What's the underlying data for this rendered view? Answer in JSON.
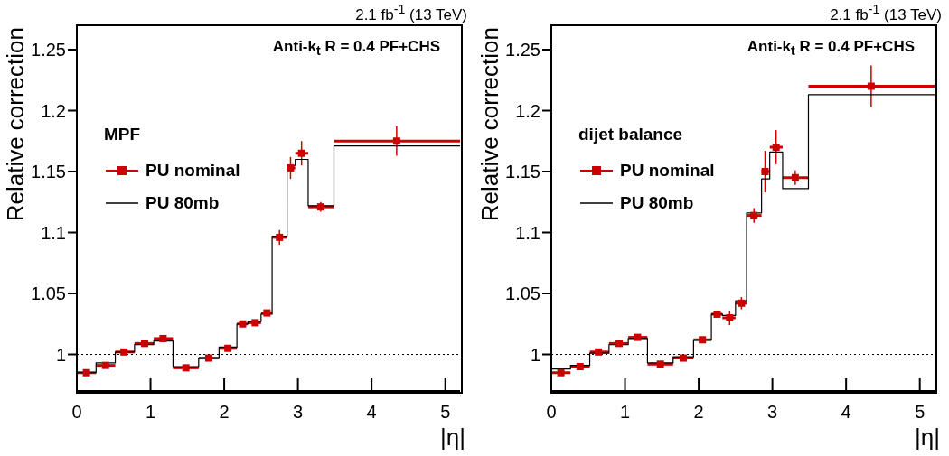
{
  "chart_data": [
    {
      "type": "scatter",
      "xlabel": "|η|",
      "ylabel": "Relative correction",
      "legend_title": "MPF",
      "legend": "left",
      "annotations": [
        "2.1 fb$^{-1}$ (13 TeV)",
        "Anti-k$_{t}$ R = 0.4 PF+CHS"
      ],
      "xlim": [
        0,
        5.2
      ],
      "ylim": [
        0.97,
        1.27
      ],
      "xticks": [
        0,
        1,
        2,
        3,
        4,
        5
      ],
      "yticks": [
        1,
        1.05,
        1.1,
        1.15,
        1.2,
        1.25
      ],
      "ref_lines": [
        {
          "axis": "y",
          "value": 1,
          "color": "#000000",
          "line_style": "dotted"
        }
      ],
      "series": [
        {
          "name": "PU nominal",
          "marker": "square",
          "color": "#cc0000",
          "x": [
            0.13,
            0.39,
            0.64,
            0.92,
            1.17,
            1.48,
            1.79,
            2.05,
            2.25,
            2.42,
            2.58,
            2.75,
            2.9,
            3.05,
            3.31,
            4.34
          ],
          "values": [
            0.985,
            0.991,
            1.002,
            1.009,
            1.013,
            0.989,
            0.997,
            1.005,
            1.025,
            1.026,
            1.034,
            1.096,
            1.153,
            1.165,
            1.121,
            1.175
          ],
          "errors": [
            0.002,
            0.002,
            0.002,
            0.002,
            0.002,
            0.002,
            0.002,
            0.002,
            0.002,
            0.002,
            0.002,
            0.006,
            0.009,
            0.01,
            0.004,
            0.012
          ],
          "xerrors": [
            [
              0,
              0.261
            ],
            [
              0.261,
              0.522
            ],
            [
              0.522,
              0.783
            ],
            [
              0.783,
              1.044
            ],
            [
              1.044,
              1.305
            ],
            [
              1.305,
              1.653
            ],
            [
              1.653,
              1.93
            ],
            [
              1.93,
              2.172
            ],
            [
              2.172,
              2.322
            ],
            [
              2.322,
              2.5
            ],
            [
              2.5,
              2.65
            ],
            [
              2.65,
              2.853
            ],
            [
              2.853,
              2.964
            ],
            [
              2.964,
              3.139
            ],
            [
              3.139,
              3.489
            ],
            [
              3.489,
              5.2
            ]
          ]
        },
        {
          "name": "PU 80mb",
          "type": "step",
          "color": "#000000",
          "x": [
            0,
            0.261,
            0.522,
            0.783,
            1.044,
            1.305,
            1.653,
            1.93,
            2.172,
            2.322,
            2.5,
            2.65,
            2.853,
            2.964,
            3.139,
            3.489,
            5.2
          ],
          "values": [
            0.985,
            0.993,
            1.002,
            1.008,
            1.011,
            0.99,
            0.997,
            1.006,
            1.025,
            1.027,
            1.033,
            1.097,
            1.155,
            1.16,
            1.122,
            1.171,
            1.171
          ]
        }
      ]
    },
    {
      "type": "scatter",
      "xlabel": "|η|",
      "ylabel": "Relative correction",
      "legend_title": "dijet balance",
      "legend": "left",
      "annotations": [
        "2.1 fb$^{-1}$ (13 TeV)",
        "Anti-k$_{t}$ R = 0.4 PF+CHS"
      ],
      "xlim": [
        0,
        5.2
      ],
      "ylim": [
        0.97,
        1.27
      ],
      "xticks": [
        0,
        1,
        2,
        3,
        4,
        5
      ],
      "yticks": [
        1,
        1.05,
        1.1,
        1.15,
        1.2,
        1.25
      ],
      "ref_lines": [
        {
          "axis": "y",
          "value": 1,
          "color": "#000000",
          "line_style": "dotted"
        }
      ],
      "series": [
        {
          "name": "PU nominal",
          "marker": "square",
          "color": "#cc0000",
          "x": [
            0.13,
            0.39,
            0.64,
            0.92,
            1.17,
            1.48,
            1.79,
            2.05,
            2.25,
            2.42,
            2.58,
            2.75,
            2.9,
            3.05,
            3.31,
            4.34
          ],
          "values": [
            0.985,
            0.99,
            1.002,
            1.009,
            1.014,
            0.992,
            0.997,
            1.012,
            1.033,
            1.03,
            1.042,
            1.114,
            1.15,
            1.17,
            1.145,
            1.22
          ],
          "errors": [
            0.002,
            0.002,
            0.002,
            0.002,
            0.002,
            0.002,
            0.002,
            0.002,
            0.002,
            0.006,
            0.005,
            0.006,
            0.017,
            0.014,
            0.006,
            0.017
          ],
          "xerrors": [
            [
              0,
              0.261
            ],
            [
              0.261,
              0.522
            ],
            [
              0.522,
              0.783
            ],
            [
              0.783,
              1.044
            ],
            [
              1.044,
              1.305
            ],
            [
              1.305,
              1.653
            ],
            [
              1.653,
              1.93
            ],
            [
              1.93,
              2.172
            ],
            [
              2.172,
              2.322
            ],
            [
              2.322,
              2.5
            ],
            [
              2.5,
              2.65
            ],
            [
              2.65,
              2.853
            ],
            [
              2.853,
              2.964
            ],
            [
              2.964,
              3.139
            ],
            [
              3.139,
              3.489
            ],
            [
              3.489,
              5.2
            ]
          ]
        },
        {
          "name": "PU 80mb",
          "type": "step",
          "color": "#000000",
          "x": [
            0,
            0.261,
            0.522,
            0.783,
            1.044,
            1.305,
            1.653,
            1.93,
            2.172,
            2.322,
            2.5,
            2.65,
            2.853,
            2.964,
            3.139,
            3.489,
            5.2
          ],
          "values": [
            0.988,
            0.991,
            1.001,
            1.008,
            1.013,
            0.993,
            0.998,
            1.012,
            1.033,
            1.032,
            1.044,
            1.116,
            1.144,
            1.166,
            1.136,
            1.213,
            1.213
          ]
        }
      ]
    }
  ]
}
